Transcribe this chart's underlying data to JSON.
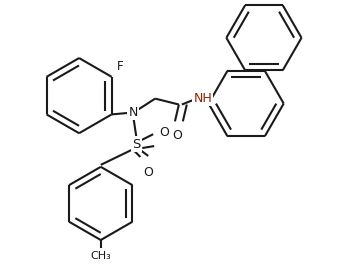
{
  "background_color": "#ffffff",
  "line_color": "#1a1a1a",
  "line_width": 1.5,
  "figsize": [
    3.55,
    2.64
  ],
  "dpi": 100,
  "bond_color": "#1a1a1a",
  "label_color_dark": "#1a1a1a",
  "label_color_nh": "#8b2200",
  "F_label": "F",
  "N_label": "N",
  "S_label": "S",
  "O_label": "O",
  "NH_label": "NH",
  "CH3_label": "CH₃"
}
